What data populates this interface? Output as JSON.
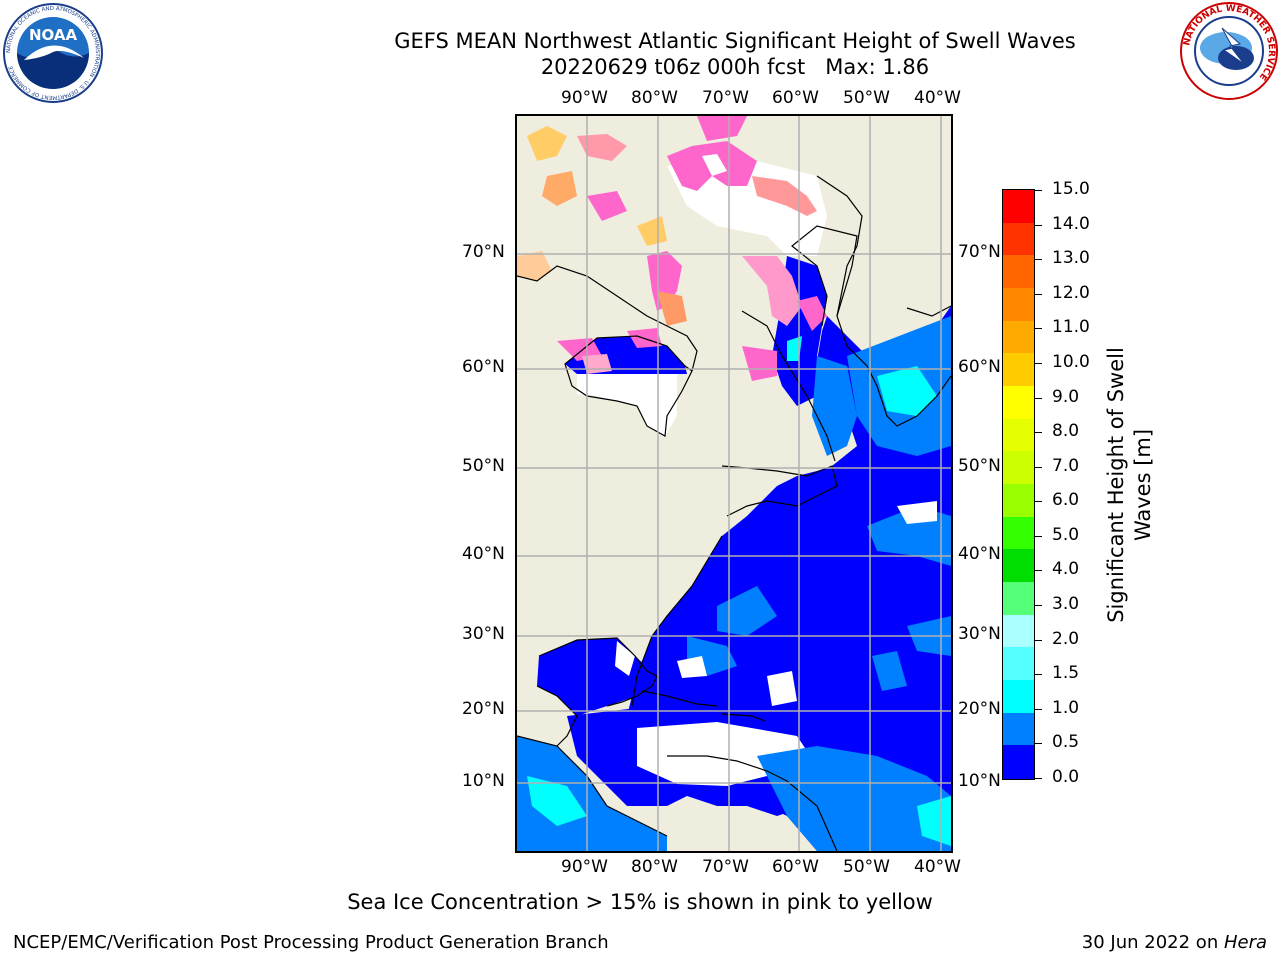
{
  "header": {
    "title_line1": "GEFS MEAN Northwest Atlantic Significant Height of Swell Waves",
    "title_line2": "20220629 t06z 000h fcst   Max: 1.86"
  },
  "logos": {
    "noaa_text": "NOAA",
    "noaa_ring_text": "NATIONAL OCEANIC AND ATMOSPHERIC ADMINISTRATION · U.S. DEPARTMENT OF COMMERCE",
    "nws_ring_text": "NATIONAL WEATHER SERVICE"
  },
  "map": {
    "lon_labels": [
      "90°W",
      "80°W",
      "70°W",
      "60°W",
      "50°W",
      "40°W"
    ],
    "lat_labels": [
      "70°N",
      "60°N",
      "50°N",
      "40°N",
      "30°N",
      "20°N",
      "10°N"
    ],
    "land_color": "#efedde",
    "ocean_low_color": "#0000ff",
    "ocean_mid_color": "#0080ff",
    "ocean_high_color": "#00ffff",
    "ice_colors": [
      "#ff66cc",
      "#ff9933",
      "#ffcc33"
    ]
  },
  "colorbar": {
    "ticks": [
      "15.0",
      "14.0",
      "13.0",
      "12.0",
      "11.0",
      "10.0",
      "9.0",
      "8.0",
      "7.0",
      "6.0",
      "5.0",
      "4.0",
      "3.0",
      "2.0",
      "1.5",
      "1.0",
      "0.5",
      "0.0"
    ],
    "colors_top_to_bottom": [
      "#ff0000",
      "#ff3300",
      "#ff6600",
      "#ff8800",
      "#ffaa00",
      "#ffcc00",
      "#ffff00",
      "#e6ff00",
      "#ccff00",
      "#99ff00",
      "#33ff00",
      "#00dd00",
      "#55ff77",
      "#aaffff",
      "#55ffff",
      "#00ffff",
      "#0080ff",
      "#0000ff"
    ],
    "label_line1": "Significant Height of Swell",
    "label_line2": "Waves [m]"
  },
  "notes": {
    "sea_ice": "Sea Ice Concentration > 15% is shown in pink to yellow"
  },
  "footer": {
    "left": "NCEP/EMC/Verification Post Processing Product Generation Branch",
    "right_prefix": "30 Jun 2022 on ",
    "right_machine": "Hera"
  }
}
